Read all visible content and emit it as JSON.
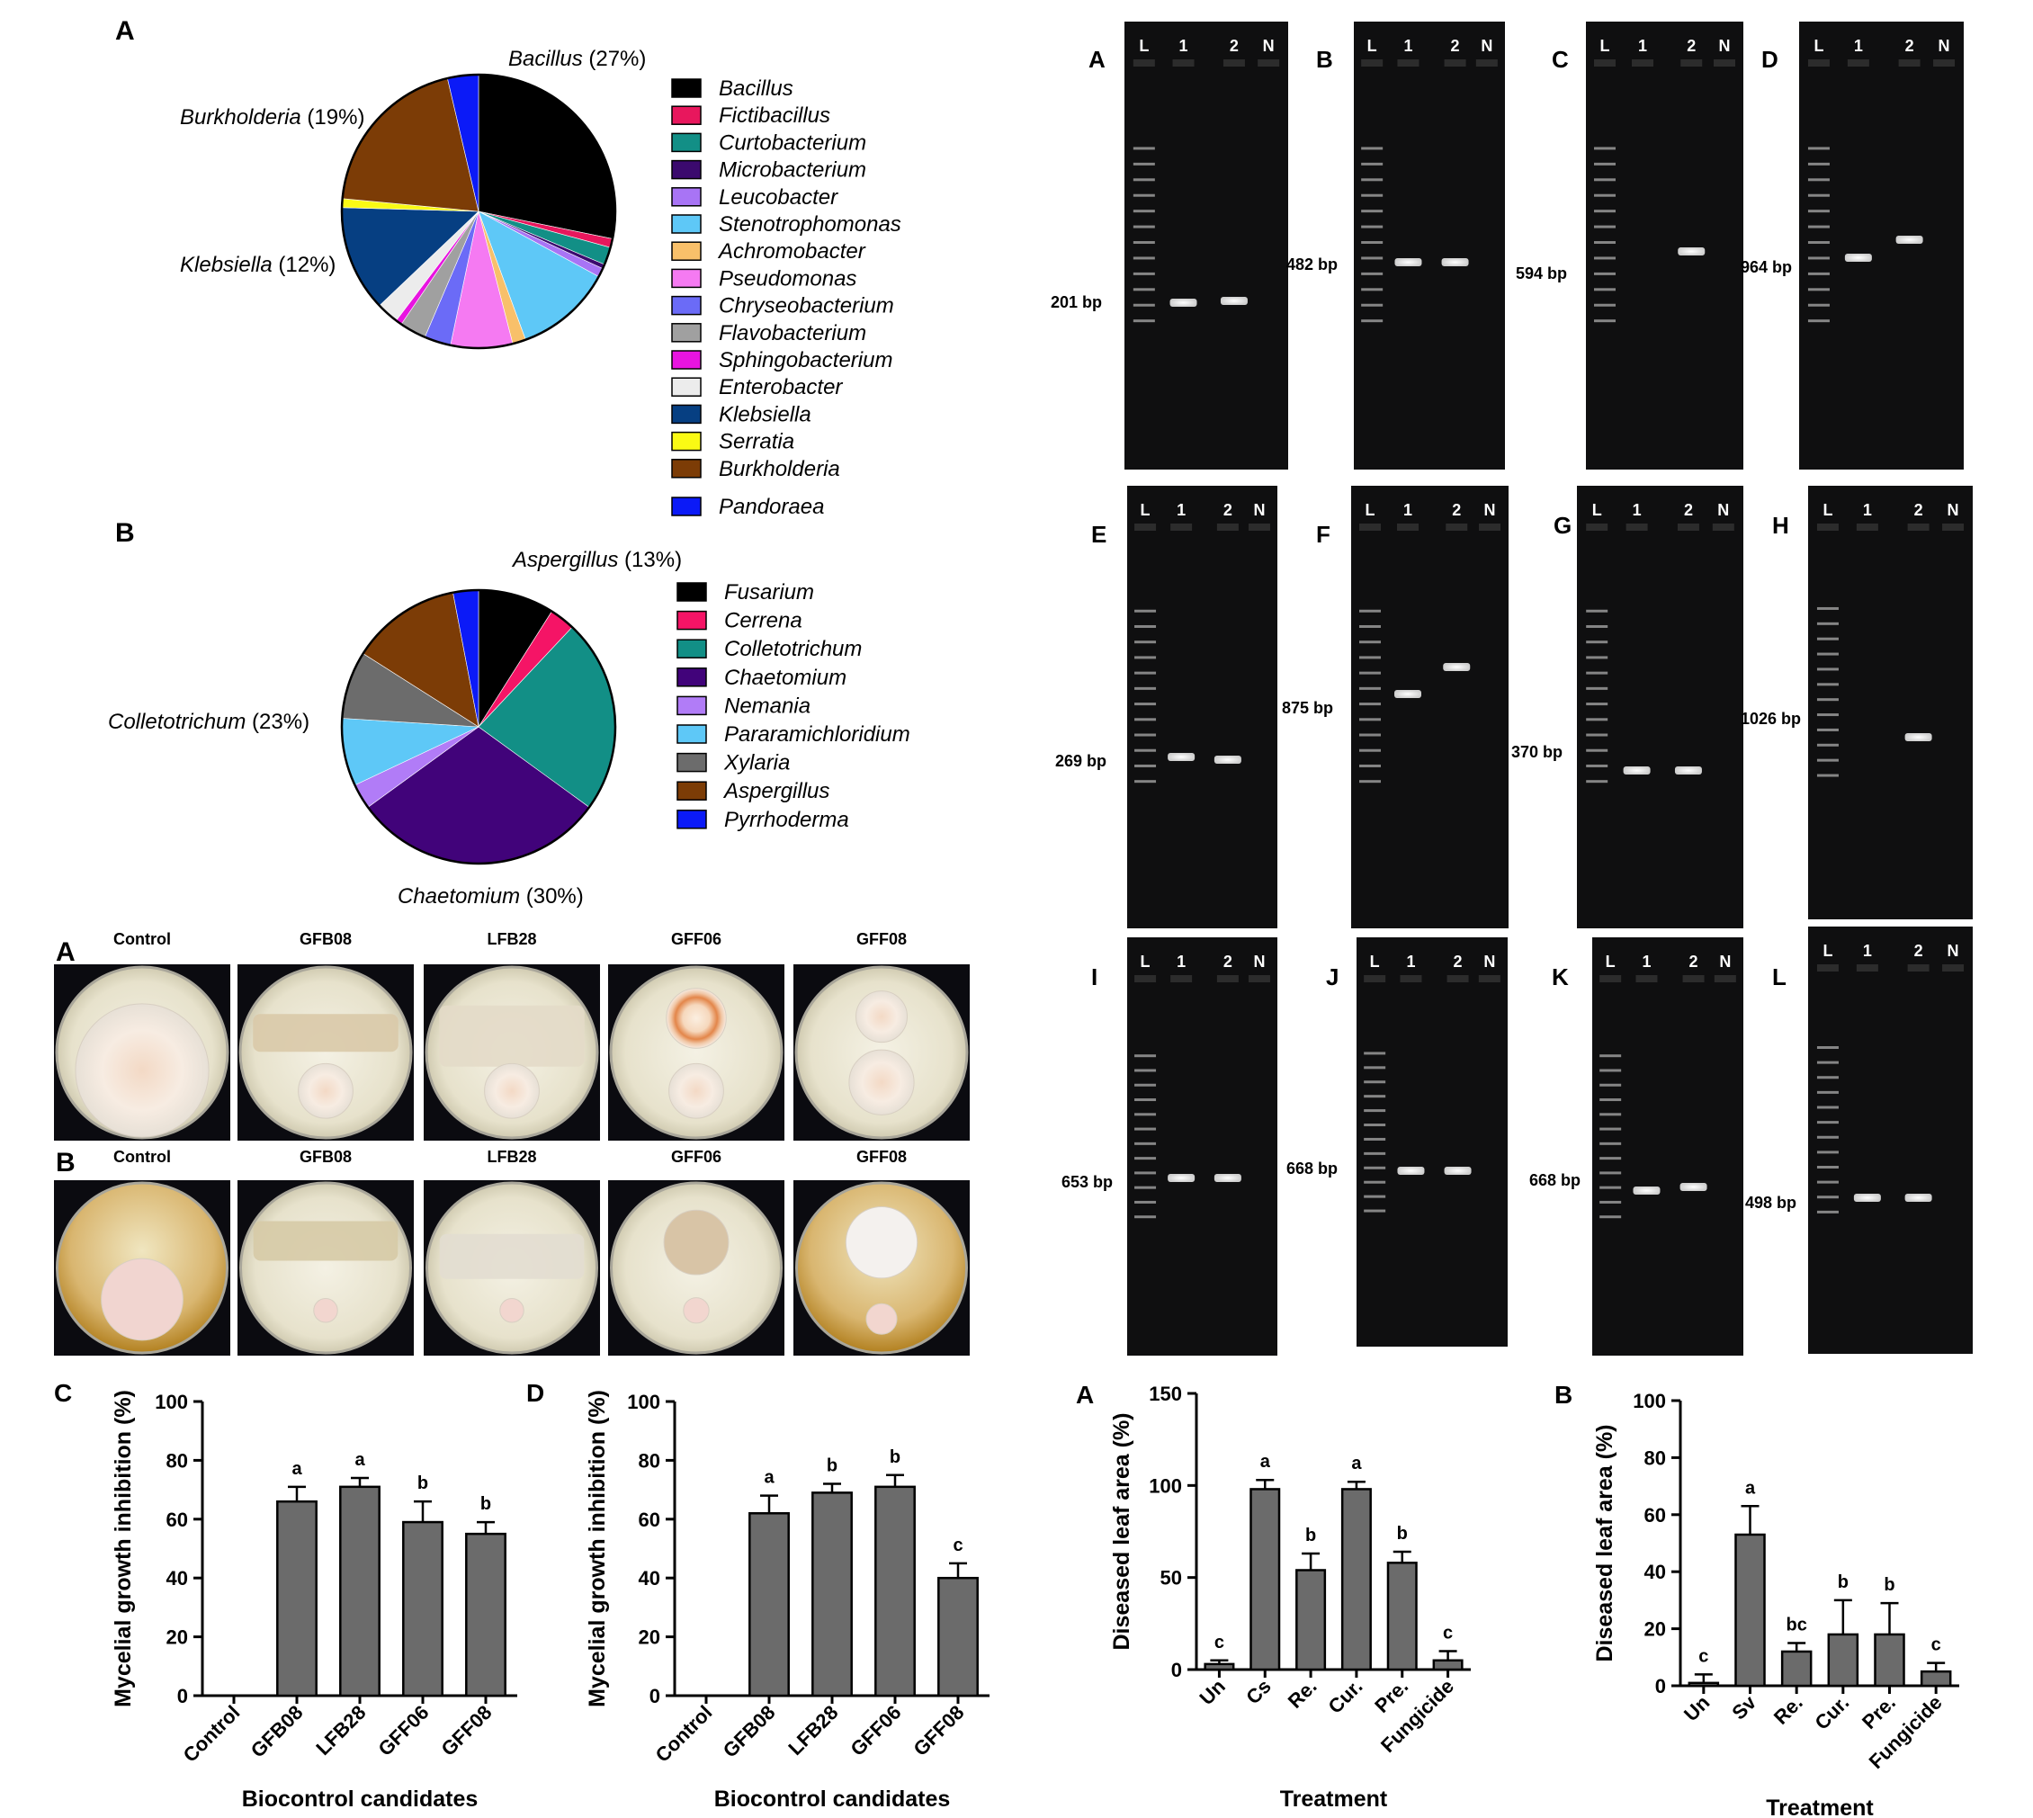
{
  "pie_charts": {
    "bacteria": {
      "panel_label": "A",
      "legend": [
        "Bacillus",
        "Fictibacillus",
        "Curtobacterium",
        "Microbacterium",
        "Leucobacter",
        "Stenotrophomonas",
        "Achromobacter",
        "Pseudomonas",
        "Chryseobacterium",
        "Flavobacterium",
        "Sphingobacterium",
        "Enterobacter",
        "Klebsiella",
        "Serratia",
        "Burkholderia",
        "Pandoraea"
      ],
      "callouts": {
        "bacillus": {
          "name": "Bacillus",
          "pct": " (27%)"
        },
        "burkholderia": {
          "name": "Burkholderia",
          "pct": " (19%)"
        },
        "klebsiella": {
          "name": "Klebsiella",
          "pct": " (12%)"
        }
      }
    },
    "fungi": {
      "panel_label": "B",
      "legend": [
        "Fusarium",
        "Cerrena",
        "Colletotrichum",
        "Chaetomium",
        "Nemania",
        "Pararamichloridium",
        "Xylaria",
        "Aspergillus",
        "Pyrrhoderma"
      ],
      "callouts": {
        "aspergillus": {
          "name": "Aspergillus",
          "pct": " (13%)"
        },
        "colletotrichum": {
          "name": "Colletotrichum",
          "pct": " (23%)"
        },
        "chaetomium": {
          "name": "Chaetomium",
          "pct": " (30%)"
        }
      }
    }
  },
  "plates": {
    "row_a_label": "A",
    "row_b_label": "B",
    "headers": [
      "Control",
      "GFB08",
      "LFB28",
      "GFF06",
      "GFF08"
    ]
  },
  "gels": [
    {
      "label": "A",
      "size": "201 bp"
    },
    {
      "label": "B",
      "size": "482 bp"
    },
    {
      "label": "C",
      "size": "594 bp"
    },
    {
      "label": "D",
      "size": "964 bp"
    },
    {
      "label": "E",
      "size": "269 bp"
    },
    {
      "label": "F",
      "size": "875 bp"
    },
    {
      "label": "G",
      "size": "370 bp"
    },
    {
      "label": "H",
      "size": "1026 bp"
    },
    {
      "label": "I",
      "size": "653 bp"
    },
    {
      "label": "J",
      "size": "668 bp"
    },
    {
      "label": "K",
      "size": "668 bp"
    },
    {
      "label": "L",
      "size": "498 bp"
    }
  ],
  "gel_lane_labels": [
    "L",
    "1",
    "2",
    "N"
  ],
  "chart_data": [
    {
      "type": "pie",
      "panel": "A",
      "labels": [
        "Bacillus",
        "Fictibacillus",
        "Curtobacterium",
        "Microbacterium",
        "Leucobacter",
        "Stenotrophomonas",
        "Achromobacter",
        "Pseudomonas",
        "Chryseobacterium",
        "Flavobacterium",
        "Sphingobacterium",
        "Enterobacter",
        "Klebsiella",
        "Serratia",
        "Burkholderia",
        "Pandoraea"
      ],
      "values": [
        27,
        1,
        2,
        0.5,
        1,
        11,
        1.5,
        7,
        3,
        3,
        0.7,
        2.5,
        12,
        1,
        19,
        3.5
      ],
      "colors": [
        "#000000",
        "#e8175d",
        "#128f86",
        "#3b0a6e",
        "#a874f5",
        "#5ec8f7",
        "#f8c06a",
        "#f57af2",
        "#6b6bf7",
        "#a0a0a0",
        "#e814e0",
        "#ececec",
        "#063f82",
        "#fafa14",
        "#7c3c06",
        "#0b1af7"
      ]
    },
    {
      "type": "pie",
      "panel": "B",
      "labels": [
        "Fusarium",
        "Cerrena",
        "Colletotrichum",
        "Chaetomium",
        "Nemania",
        "Pararamichloridium",
        "Xylaria",
        "Aspergillus",
        "Pyrrhoderma"
      ],
      "values": [
        9,
        3,
        23,
        30,
        3,
        8,
        8,
        13,
        3
      ],
      "colors": [
        "#000000",
        "#f51466",
        "#128f86",
        "#41037a",
        "#b17cf7",
        "#5ec8f7",
        "#6c6c6c",
        "#7c3c06",
        "#0b1af7"
      ]
    },
    {
      "type": "bar",
      "panel": "C",
      "categories": [
        "Control",
        "GFB08",
        "LFB28",
        "GFF06",
        "GFF08"
      ],
      "values": [
        0,
        66,
        71,
        59,
        55
      ],
      "errors": [
        0,
        5,
        3,
        7,
        4
      ],
      "letters": [
        "",
        "a",
        "a",
        "b",
        "b"
      ],
      "xlabel": "Biocontrol candidates",
      "ylabel": "Mycelial growth inhibition (%)",
      "yticks": [
        0,
        20,
        40,
        60,
        80,
        100
      ],
      "ylim": [
        0,
        100
      ]
    },
    {
      "type": "bar",
      "panel": "D",
      "categories": [
        "Control",
        "GFB08",
        "LFB28",
        "GFF06",
        "GFF08"
      ],
      "values": [
        0,
        62,
        69,
        71,
        40
      ],
      "errors": [
        0,
        6,
        3,
        4,
        5
      ],
      "letters": [
        "",
        "a",
        "b",
        "b",
        "c"
      ],
      "xlabel": "Biocontrol candidates",
      "ylabel": "Mycelial  growth inhibition (%)",
      "yticks": [
        0,
        20,
        40,
        60,
        80,
        100
      ],
      "ylim": [
        0,
        100
      ]
    },
    {
      "type": "bar",
      "panel": "A",
      "categories": [
        "Un",
        "Cs",
        "Re.",
        "Cur.",
        "Pre.",
        "Fungicide"
      ],
      "values": [
        3,
        98,
        54,
        98,
        58,
        5
      ],
      "errors": [
        2,
        5,
        9,
        4,
        6,
        5
      ],
      "letters": [
        "c",
        "a",
        "b",
        "a",
        "b",
        "c"
      ],
      "xlabel": "Treatment",
      "ylabel": "Diseased leaf area (%)",
      "yticks": [
        0,
        50,
        100,
        150
      ],
      "ylim": [
        0,
        150
      ]
    },
    {
      "type": "bar",
      "panel": "B",
      "categories": [
        "Un",
        "Sv",
        "Re.",
        "Cur.",
        "Pre.",
        "Fungicide"
      ],
      "values": [
        1,
        53,
        12,
        18,
        18,
        5
      ],
      "errors": [
        3,
        10,
        3,
        12,
        11,
        3
      ],
      "letters": [
        "c",
        "a",
        "bc",
        "b",
        "b",
        "c"
      ],
      "xlabel": "Treatment",
      "ylabel": "Diseased leaf area (%)",
      "yticks": [
        0,
        20,
        40,
        60,
        80,
        100
      ],
      "ylim": [
        0,
        100
      ]
    }
  ]
}
